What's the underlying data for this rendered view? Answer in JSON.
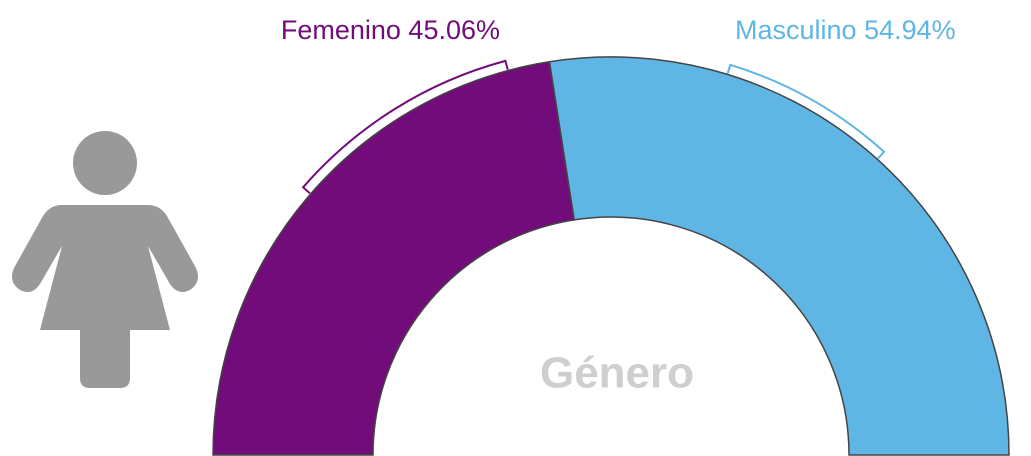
{
  "chart_data": {
    "type": "donut",
    "half": true,
    "title": "Género",
    "categories": [
      "Femenino",
      "Masculino"
    ],
    "values": [
      45.06,
      54.94
    ],
    "value_labels": [
      "45.06%",
      "54.94%"
    ],
    "colors": [
      "#720c7a",
      "#5fb6e4"
    ]
  }
}
